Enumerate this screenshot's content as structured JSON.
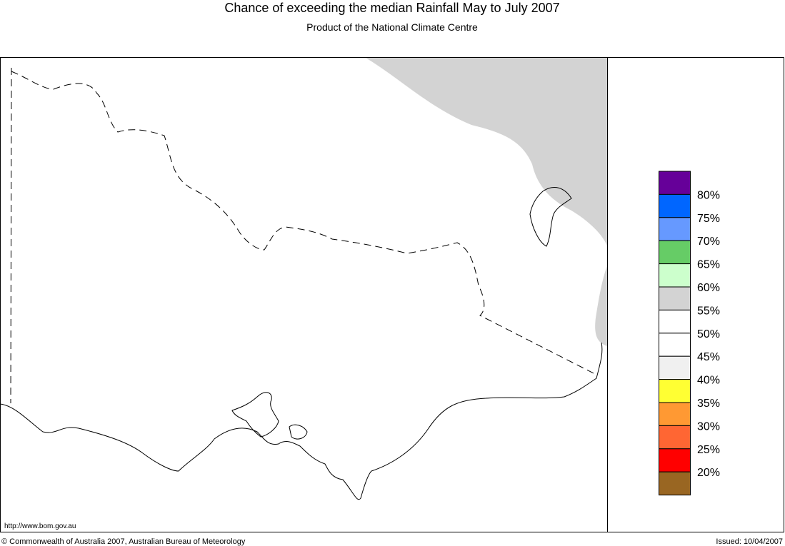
{
  "header": {
    "title": "Chance of exceeding the median Rainfall May to July 2007",
    "subtitle": "Product of the National Climate Centre"
  },
  "legend": {
    "labels": [
      "80%",
      "75%",
      "70%",
      "65%",
      "60%",
      "55%",
      "50%",
      "45%",
      "40%",
      "35%",
      "30%",
      "25%",
      "20%"
    ],
    "colors": [
      "#660099",
      "#0066ff",
      "#6699ff",
      "#66cc66",
      "#ccffcc",
      "#d3d3d3",
      "#ffffff",
      "#ffffff",
      "#f0f0f0",
      "#ffff33",
      "#ff9933",
      "#ff6633",
      "#ff0000",
      "#996622"
    ]
  },
  "footer": {
    "url": "http://www.bom.gov.au",
    "copyright": "© Commonwealth of Australia 2007, Australian Bureau of Meteorology",
    "issued": "Issued: 10/04/2007"
  }
}
